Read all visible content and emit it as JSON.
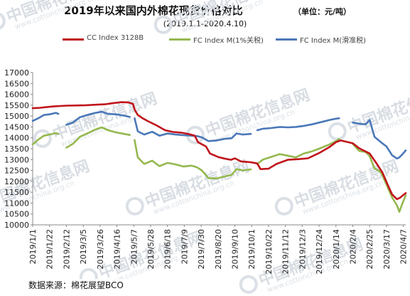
{
  "header": {
    "title": "2019年以来国内外棉花现货价格对比",
    "unit": "（单位：元/吨）",
    "subtitle": "(2019.1.1-2020.4.10)"
  },
  "source": "数据来源：棉花展望BCO",
  "watermark": {
    "logo_text": "中国棉花信息网",
    "url": "www.cottonchina.org.cn"
  },
  "colors": {
    "cc": "#c0141b",
    "fc_tax": "#94b84e",
    "fc_slide": "#4a78b8"
  },
  "chart_data": {
    "type": "line",
    "title": "2019年以来国内外棉花现货价格对比",
    "subtitle": "(2019.1.1-2020.4.10)",
    "unit": "（单位：元/吨）",
    "ylim": [
      10000,
      17000
    ],
    "yticks": [
      10000,
      10500,
      11000,
      11500,
      12000,
      12500,
      13000,
      13500,
      14000,
      14500,
      15000,
      15500,
      16000,
      16500,
      17000
    ],
    "xlim": [
      "2019-01-01",
      "2020-04-10"
    ],
    "xticks": [
      "2019/1/1",
      "2019/1/22",
      "2019/2/12",
      "2019/3/5",
      "2019/3/26",
      "2019/4/16",
      "2019/5/7",
      "2019/5/28",
      "2019/6/18",
      "2019/7/9",
      "2019/7/30",
      "2019/8/20",
      "2019/9/10",
      "2019/10/1",
      "2019/10/22",
      "2019/11/12",
      "2019/12/3",
      "2019/12/24",
      "2020/1/14",
      "2020/2/4",
      "2020/2/25",
      "2020/3/17",
      "2020/4/7"
    ],
    "grid": false,
    "legend_position": "top",
    "series": [
      {
        "name": "CC Index 3128B",
        "color": "#c0141b",
        "points": [
          [
            "2019-01-01",
            15360
          ],
          [
            "2019-01-10",
            15380
          ],
          [
            "2019-01-20",
            15420
          ],
          [
            "2019-01-28",
            15450
          ],
          [
            "2019-02-12",
            15480
          ],
          [
            "2019-02-25",
            15490
          ],
          [
            "2019-03-08",
            15500
          ],
          [
            "2019-03-20",
            15520
          ],
          [
            "2019-04-01",
            15540
          ],
          [
            "2019-04-12",
            15600
          ],
          [
            "2019-04-22",
            15640
          ],
          [
            "2019-04-30",
            15630
          ],
          [
            "2019-05-06",
            15560
          ],
          [
            "2019-05-08",
            15300
          ],
          [
            "2019-05-12",
            15050
          ],
          [
            "2019-05-18",
            14900
          ],
          [
            "2019-05-25",
            14760
          ],
          [
            "2019-06-05",
            14560
          ],
          [
            "2019-06-15",
            14350
          ],
          [
            "2019-06-25",
            14270
          ],
          [
            "2019-07-05",
            14240
          ],
          [
            "2019-07-15",
            14170
          ],
          [
            "2019-07-22",
            14100
          ],
          [
            "2019-07-26",
            13800
          ],
          [
            "2019-08-05",
            13600
          ],
          [
            "2019-08-10",
            13280
          ],
          [
            "2019-08-20",
            13120
          ],
          [
            "2019-08-28",
            13050
          ],
          [
            "2019-09-05",
            12990
          ],
          [
            "2019-09-10",
            13060
          ],
          [
            "2019-09-18",
            12910
          ],
          [
            "2019-09-25",
            12890
          ],
          [
            "2019-09-30",
            12880
          ],
          [
            "2019-10-08",
            12820
          ],
          [
            "2019-10-12",
            12560
          ],
          [
            "2019-10-22",
            12580
          ],
          [
            "2019-11-01",
            12800
          ],
          [
            "2019-11-15",
            12990
          ],
          [
            "2019-11-28",
            13020
          ],
          [
            "2019-12-10",
            13060
          ],
          [
            "2019-12-24",
            13300
          ],
          [
            "2020-01-06",
            13580
          ],
          [
            "2020-01-14",
            13800
          ],
          [
            "2020-01-20",
            13880
          ],
          [
            "2020-02-04",
            13750
          ],
          [
            "2020-02-12",
            13520
          ],
          [
            "2020-02-25",
            13280
          ],
          [
            "2020-03-05",
            12800
          ],
          [
            "2020-03-12",
            12400
          ],
          [
            "2020-03-19",
            11800
          ],
          [
            "2020-03-24",
            11400
          ],
          [
            "2020-03-30",
            11180
          ],
          [
            "2020-04-03",
            11250
          ],
          [
            "2020-04-10",
            11460
          ]
        ]
      },
      {
        "name": "FC Index M(1%关税)",
        "color": "#94b84e",
        "segments": [
          [
            [
              "2019-01-01",
              13700
            ],
            [
              "2019-01-08",
              13920
            ],
            [
              "2019-01-15",
              14100
            ],
            [
              "2019-01-22",
              14150
            ],
            [
              "2019-01-30",
              14220
            ],
            [
              "2019-02-02",
              14180
            ]
          ],
          [
            [
              "2019-02-12",
              13550
            ],
            [
              "2019-02-20",
              13720
            ],
            [
              "2019-03-01",
              14050
            ],
            [
              "2019-03-10",
              14200
            ],
            [
              "2019-03-20",
              14380
            ],
            [
              "2019-03-28",
              14480
            ],
            [
              "2019-04-05",
              14350
            ],
            [
              "2019-04-15",
              14250
            ],
            [
              "2019-04-25",
              14180
            ],
            [
              "2019-05-02",
              14130
            ]
          ],
          [
            [
              "2019-05-08",
              13900
            ],
            [
              "2019-05-12",
              13100
            ],
            [
              "2019-05-20",
              12800
            ],
            [
              "2019-05-30",
              12950
            ],
            [
              "2019-06-08",
              12700
            ],
            [
              "2019-06-18",
              12850
            ],
            [
              "2019-06-28",
              12780
            ],
            [
              "2019-07-08",
              12680
            ],
            [
              "2019-07-18",
              12720
            ],
            [
              "2019-07-25",
              12640
            ],
            [
              "2019-07-31",
              12500
            ],
            [
              "2019-08-08",
              12150
            ],
            [
              "2019-08-18",
              12130
            ],
            [
              "2019-08-28",
              12220
            ],
            [
              "2019-09-06",
              12300
            ],
            [
              "2019-09-12",
              12560
            ],
            [
              "2019-09-20",
              12500
            ],
            [
              "2019-09-30",
              12550
            ]
          ],
          [
            [
              "2019-10-08",
              12800
            ],
            [
              "2019-10-15",
              13000
            ],
            [
              "2019-10-25",
              13120
            ],
            [
              "2019-11-05",
              13250
            ],
            [
              "2019-11-15",
              13180
            ],
            [
              "2019-11-25",
              13100
            ],
            [
              "2019-12-05",
              13280
            ],
            [
              "2019-12-15",
              13380
            ],
            [
              "2019-12-24",
              13500
            ],
            [
              "2020-01-06",
              13700
            ],
            [
              "2020-01-14",
              13850
            ],
            [
              "2020-01-18",
              13950
            ]
          ],
          [
            [
              "2020-02-04",
              13720
            ],
            [
              "2020-02-12",
              13400
            ],
            [
              "2020-02-20",
              13350
            ],
            [
              "2020-02-25",
              13160
            ],
            [
              "2020-03-02",
              12600
            ],
            [
              "2020-03-10",
              12420
            ],
            [
              "2020-03-17",
              11850
            ],
            [
              "2020-03-24",
              11260
            ],
            [
              "2020-03-30",
              10900
            ],
            [
              "2020-04-02",
              10600
            ],
            [
              "2020-04-06",
              11000
            ],
            [
              "2020-04-10",
              11350
            ]
          ]
        ]
      },
      {
        "name": "FC Index M(滑准税)",
        "color": "#4a78b8",
        "segments": [
          [
            [
              "2019-01-01",
              14780
            ],
            [
              "2019-01-08",
              14900
            ],
            [
              "2019-01-15",
              15050
            ],
            [
              "2019-01-22",
              15080
            ],
            [
              "2019-01-30",
              15150
            ],
            [
              "2019-02-02",
              15100
            ]
          ],
          [
            [
              "2019-02-12",
              14600
            ],
            [
              "2019-02-20",
              14700
            ],
            [
              "2019-03-01",
              14950
            ],
            [
              "2019-03-10",
              15050
            ],
            [
              "2019-03-20",
              15150
            ],
            [
              "2019-03-28",
              15200
            ],
            [
              "2019-04-05",
              15100
            ],
            [
              "2019-04-15",
              15080
            ],
            [
              "2019-04-25",
              15020
            ],
            [
              "2019-05-02",
              14960
            ]
          ],
          [
            [
              "2019-05-08",
              14900
            ],
            [
              "2019-05-12",
              14300
            ],
            [
              "2019-05-20",
              14150
            ],
            [
              "2019-05-30",
              14280
            ],
            [
              "2019-06-08",
              14100
            ],
            [
              "2019-06-18",
              14200
            ],
            [
              "2019-06-28",
              14150
            ],
            [
              "2019-07-08",
              14120
            ],
            [
              "2019-07-18",
              14100
            ],
            [
              "2019-07-25",
              14080
            ],
            [
              "2019-07-31",
              14020
            ],
            [
              "2019-08-08",
              13850
            ],
            [
              "2019-08-18",
              13880
            ],
            [
              "2019-08-28",
              13950
            ],
            [
              "2019-09-06",
              13980
            ],
            [
              "2019-09-12",
              14200
            ],
            [
              "2019-09-20",
              14150
            ],
            [
              "2019-09-30",
              14180
            ]
          ],
          [
            [
              "2019-10-08",
              14350
            ],
            [
              "2019-10-15",
              14420
            ],
            [
              "2019-10-25",
              14450
            ],
            [
              "2019-11-05",
              14500
            ],
            [
              "2019-11-15",
              14480
            ],
            [
              "2019-11-25",
              14500
            ],
            [
              "2019-12-05",
              14550
            ],
            [
              "2019-12-15",
              14620
            ],
            [
              "2019-12-24",
              14700
            ],
            [
              "2020-01-06",
              14820
            ],
            [
              "2020-01-14",
              14880
            ],
            [
              "2020-01-18",
              14900
            ]
          ],
          [
            [
              "2020-02-04",
              14700
            ],
            [
              "2020-02-12",
              14650
            ],
            [
              "2020-02-20",
              14620
            ],
            [
              "2020-02-25",
              14820
            ],
            [
              "2020-03-02",
              14050
            ],
            [
              "2020-03-10",
              13800
            ],
            [
              "2020-03-17",
              13600
            ],
            [
              "2020-03-24",
              13200
            ],
            [
              "2020-03-30",
              13050
            ],
            [
              "2020-04-02",
              13100
            ],
            [
              "2020-04-06",
              13250
            ],
            [
              "2020-04-10",
              13420
            ]
          ]
        ]
      }
    ]
  }
}
